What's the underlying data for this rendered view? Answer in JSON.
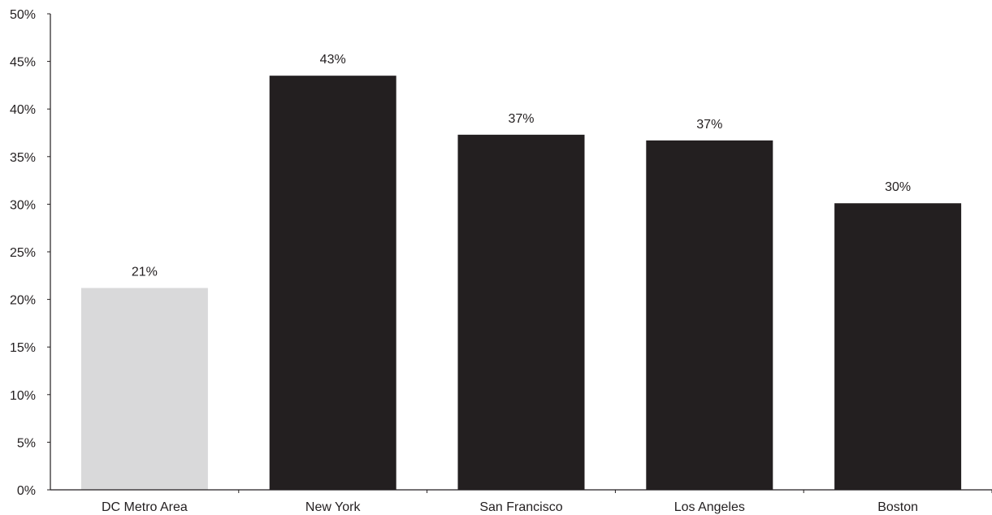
{
  "chart_data": {
    "type": "bar",
    "title": "",
    "xlabel": "",
    "ylabel": "",
    "categories": [
      "DC Metro Area",
      "New York",
      "San Francisco",
      "Los Angeles",
      "Boston"
    ],
    "values": [
      21.2,
      43.5,
      37.3,
      36.7,
      30.1
    ],
    "data_labels": [
      "21%",
      "43%",
      "37%",
      "37%",
      "30%"
    ],
    "bar_colors": [
      "#d9d9da",
      "#231f20",
      "#231f20",
      "#231f20",
      "#231f20"
    ],
    "ylim": [
      0,
      50
    ],
    "yticks": [
      0,
      5,
      10,
      15,
      20,
      25,
      30,
      35,
      40,
      45,
      50
    ],
    "ytick_labels": [
      "0%",
      "5%",
      "10%",
      "15%",
      "20%",
      "25%",
      "30%",
      "35%",
      "40%",
      "45%",
      "50%"
    ],
    "grid": false,
    "legend": "none"
  }
}
